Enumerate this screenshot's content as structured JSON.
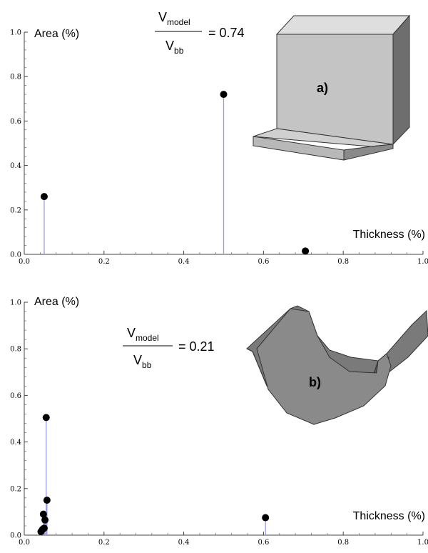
{
  "chart_data": [
    {
      "type": "stem",
      "xlabel": "Thickness (%)",
      "ylabel": "Area (%)",
      "xlim": [
        0,
        1
      ],
      "ylim": [
        0,
        1
      ],
      "xticks": [
        "0.0",
        "0.2",
        "0.4",
        "0.6",
        "0.8",
        "1.0"
      ],
      "yticks": [
        "0.0",
        "0.2",
        "0.4",
        "0.6",
        "0.8",
        "1.0"
      ],
      "points": [
        {
          "x": 0.05,
          "y": 0.26
        },
        {
          "x": 0.5,
          "y": 0.72
        },
        {
          "x": 0.705,
          "y": 0.015
        }
      ],
      "annotation": {
        "numerator": "V",
        "numerator_sub": "model",
        "denominator": "V",
        "denominator_sub": "bb",
        "value": "= 0.74"
      },
      "part_label": "a)"
    },
    {
      "type": "stem",
      "xlabel": "Thickness (%)",
      "ylabel": "Area (%)",
      "xlim": [
        0,
        1
      ],
      "ylim": [
        0,
        1
      ],
      "xticks": [
        "0.0",
        "0.2",
        "0.4",
        "0.6",
        "0.8",
        "1.0"
      ],
      "yticks": [
        "0.0",
        "0.2",
        "0.4",
        "0.6",
        "0.8",
        "1.0"
      ],
      "points": [
        {
          "x": 0.042,
          "y": 0.015
        },
        {
          "x": 0.046,
          "y": 0.025
        },
        {
          "x": 0.048,
          "y": 0.09
        },
        {
          "x": 0.05,
          "y": 0.03
        },
        {
          "x": 0.052,
          "y": 0.065
        },
        {
          "x": 0.055,
          "y": 0.505
        },
        {
          "x": 0.057,
          "y": 0.15
        },
        {
          "x": 0.605,
          "y": 0.075
        }
      ],
      "annotation": {
        "numerator": "V",
        "numerator_sub": "model",
        "denominator": "V",
        "denominator_sub": "bb",
        "value": "= 0.21"
      },
      "part_label": "b)"
    }
  ]
}
